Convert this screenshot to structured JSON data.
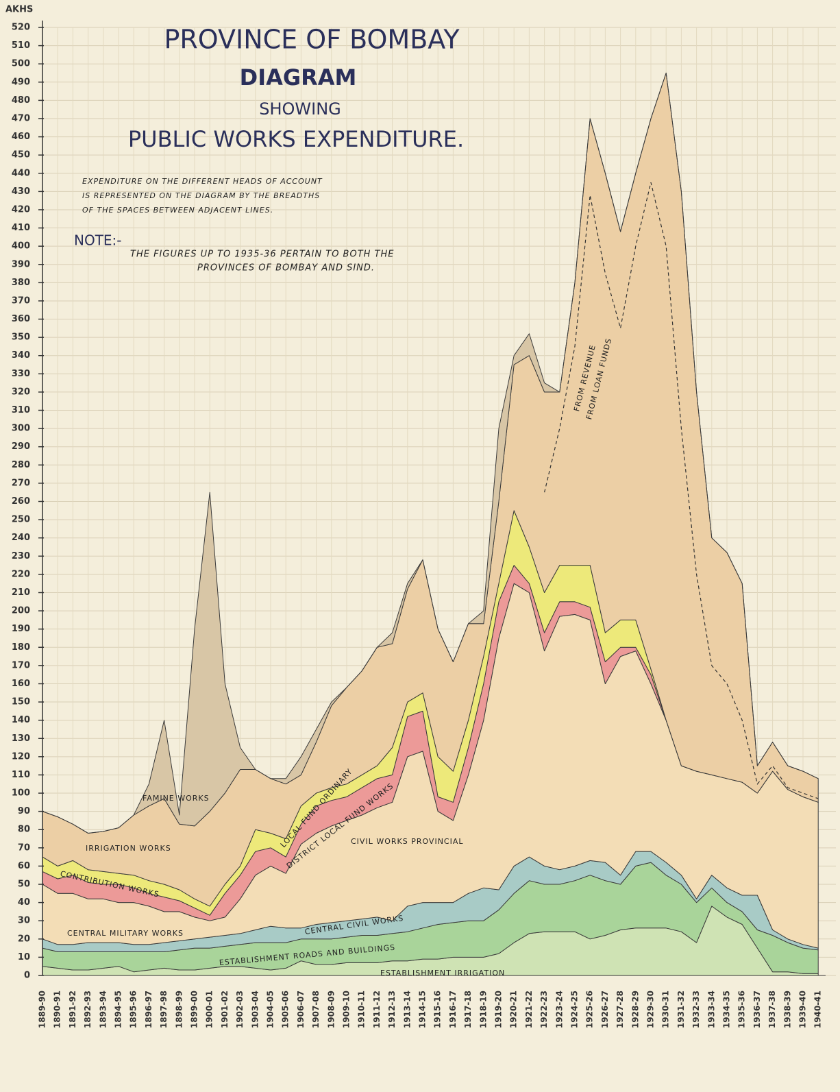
{
  "chart_data": {
    "type": "stacked_area",
    "title": "PROVINCE OF BOMBAY",
    "subtitle_lines": [
      "DIAGRAM",
      "SHOWING",
      "PUBLIC WORKS EXPENDITURE."
    ],
    "description_lines": [
      "EXPENDITURE ON THE DIFFERENT HEADS OF ACCOUNT",
      "IS REPRESENTED ON THE DIAGRAM BY THE BREADTHS",
      "OF THE SPACES BETWEEN ADJACENT LINES."
    ],
    "note_label": "NOTE:-",
    "note_lines": [
      "THE FIGURES UP TO 1935-36 PERTAIN TO BOTH THE",
      "PROVINCES OF BOMBAY AND SIND."
    ],
    "y_unit_label": "AKHS",
    "categories": [
      "1889-90",
      "1890-91",
      "1891-92",
      "1892-93",
      "1893-94",
      "1894-95",
      "1895-96",
      "1896-97",
      "1897-98",
      "1898-99",
      "1899-00",
      "1900-01",
      "1901-02",
      "1902-03",
      "1903-04",
      "1904-05",
      "1905-06",
      "1906-07",
      "1907-08",
      "1908-09",
      "1909-10",
      "1910-11",
      "1911-12",
      "1912-13",
      "1913-14",
      "1914-15",
      "1915-16",
      "1916-17",
      "1917-18",
      "1918-19",
      "1919-20",
      "1920-21",
      "1921-22",
      "1922-23",
      "1923-24",
      "1924-25",
      "1925-26",
      "1926-27",
      "1927-28",
      "1928-29",
      "1929-30",
      "1930-31",
      "1931-32",
      "1932-33",
      "1933-34",
      "1934-35",
      "1935-36",
      "1936-37",
      "1937-38",
      "1938-39",
      "1939-40",
      "1940-41"
    ],
    "ylim": [
      0,
      520
    ],
    "yticks": [
      0,
      10,
      20,
      30,
      40,
      50,
      60,
      70,
      80,
      90,
      100,
      110,
      120,
      130,
      140,
      150,
      160,
      170,
      180,
      190,
      200,
      210,
      220,
      230,
      240,
      250,
      260,
      270,
      280,
      290,
      300,
      310,
      320,
      330,
      340,
      350,
      360,
      370,
      380,
      390,
      400,
      410,
      420,
      430,
      440,
      450,
      460,
      470,
      480,
      490,
      500,
      510,
      520
    ],
    "grid": true,
    "series": [
      {
        "name": "ESTABLISHMENT IRRIGATION",
        "color": "#cfe3b4",
        "values": [
          5,
          4,
          3,
          3,
          4,
          5,
          2,
          3,
          4,
          3,
          3,
          4,
          5,
          5,
          4,
          3,
          4,
          8,
          6,
          6,
          7,
          7,
          7,
          8,
          8,
          9,
          9,
          10,
          10,
          10,
          12,
          18,
          23,
          24,
          24,
          24,
          20,
          22,
          25,
          26,
          26,
          26,
          24,
          18,
          38,
          32,
          28,
          15,
          2,
          2,
          1,
          1
        ]
      },
      {
        "name": "ESTABLISHMENT ROADS AND BUILDINGS",
        "color": "#a9d49a",
        "values": [
          10,
          9,
          10,
          10,
          9,
          8,
          11,
          10,
          9,
          11,
          12,
          11,
          11,
          12,
          14,
          15,
          14,
          12,
          14,
          14,
          14,
          15,
          15,
          15,
          16,
          17,
          19,
          19,
          20,
          20,
          24,
          27,
          29,
          26,
          26,
          28,
          35,
          30,
          25,
          34,
          36,
          29,
          26,
          22,
          10,
          8,
          7,
          10,
          20,
          16,
          14,
          13
        ]
      },
      {
        "name": "CENTRAL CIVIL WORKS",
        "color": "#a8cbc6",
        "values": [
          5,
          4,
          4,
          5,
          5,
          5,
          4,
          4,
          5,
          5,
          5,
          6,
          6,
          6,
          7,
          9,
          8,
          6,
          8,
          9,
          9,
          9,
          10,
          7,
          14,
          14,
          12,
          11,
          15,
          18,
          11,
          15,
          13,
          10,
          8,
          8,
          8,
          10,
          5,
          8,
          6,
          7,
          5,
          2,
          7,
          8,
          9,
          19,
          3,
          2,
          2,
          1
        ]
      },
      {
        "name": "CIVIL WORKS PROVINCIAL",
        "color": "#f3ddb6",
        "values": [
          30,
          28,
          28,
          24,
          24,
          22,
          23,
          21,
          17,
          16,
          12,
          9,
          10,
          19,
          30,
          33,
          30,
          46,
          50,
          53,
          55,
          57,
          60,
          65,
          82,
          83,
          50,
          45,
          65,
          92,
          138,
          155,
          145,
          118,
          139,
          138,
          132,
          98,
          120,
          110,
          92,
          78,
          60,
          70,
          55,
          60,
          62,
          56,
          87,
          82,
          81,
          80
        ]
      },
      {
        "name": "DISTRICT LOCAL FUND WORKS",
        "color": "#ec9a98",
        "values": [
          7,
          8,
          10,
          9,
          8,
          10,
          8,
          7,
          8,
          6,
          5,
          3,
          13,
          13,
          13,
          10,
          9,
          11,
          15,
          14,
          13,
          15,
          16,
          15,
          22,
          22,
          8,
          10,
          15,
          20,
          20,
          10,
          5,
          10,
          8,
          7,
          7,
          12,
          5,
          2,
          5,
          0,
          0,
          0,
          0,
          0,
          0,
          0,
          0,
          0,
          0,
          0
        ]
      },
      {
        "name": "LOCAL FUND ORDINARY",
        "color": "#ede97a",
        "values": [
          8,
          7,
          8,
          7,
          7,
          6,
          7,
          7,
          7,
          6,
          5,
          5,
          5,
          5,
          12,
          8,
          10,
          10,
          7,
          7,
          7,
          7,
          7,
          15,
          8,
          10,
          22,
          17,
          15,
          15,
          10,
          30,
          20,
          22,
          20,
          20,
          23,
          16,
          15,
          15,
          3,
          0,
          0,
          0,
          0,
          0,
          0,
          0,
          0,
          0,
          0,
          0
        ]
      },
      {
        "name": "IRRIGATION WORKS",
        "color": "#eccfa5",
        "values": [
          25,
          27,
          20,
          20,
          22,
          25,
          33,
          41,
          47,
          36,
          40,
          52,
          50,
          53,
          33,
          30,
          30,
          17,
          28,
          45,
          53,
          57,
          65,
          57,
          62,
          73,
          70,
          60,
          53,
          18,
          45,
          80,
          105,
          110,
          95,
          155,
          245,
          252,
          213,
          245,
          302,
          355,
          315,
          208,
          130,
          124,
          109,
          15,
          16,
          13,
          14,
          13
        ]
      },
      {
        "name": "FAMINE WORKS",
        "color": "#d8c6a6",
        "values": [
          0,
          0,
          0,
          0,
          0,
          0,
          0,
          12,
          43,
          5,
          108,
          175,
          60,
          12,
          0,
          0,
          3,
          10,
          7,
          2,
          0,
          0,
          0,
          6,
          3,
          0,
          0,
          0,
          0,
          7,
          40,
          5,
          12,
          5,
          0,
          0,
          0,
          0,
          0,
          0,
          0,
          0,
          0,
          0,
          0,
          0,
          0,
          0,
          0,
          0,
          0,
          0
        ]
      }
    ],
    "dashed_line": {
      "style": "dashed",
      "color": "#333333",
      "values": [
        null,
        null,
        null,
        null,
        null,
        null,
        null,
        null,
        null,
        null,
        null,
        null,
        null,
        null,
        null,
        null,
        null,
        null,
        null,
        null,
        null,
        null,
        null,
        null,
        null,
        null,
        null,
        null,
        null,
        null,
        null,
        null,
        null,
        265,
        300,
        345,
        428,
        385,
        355,
        400,
        435,
        400,
        300,
        220,
        170,
        160,
        140,
        105,
        115,
        103,
        100,
        97
      ]
    },
    "annotations": [
      "CENTRAL MILITARY WORKS",
      "CONTRIBUTION WORKS",
      "FROM REVENUE",
      "FROM LOAN FUNDS"
    ]
  }
}
